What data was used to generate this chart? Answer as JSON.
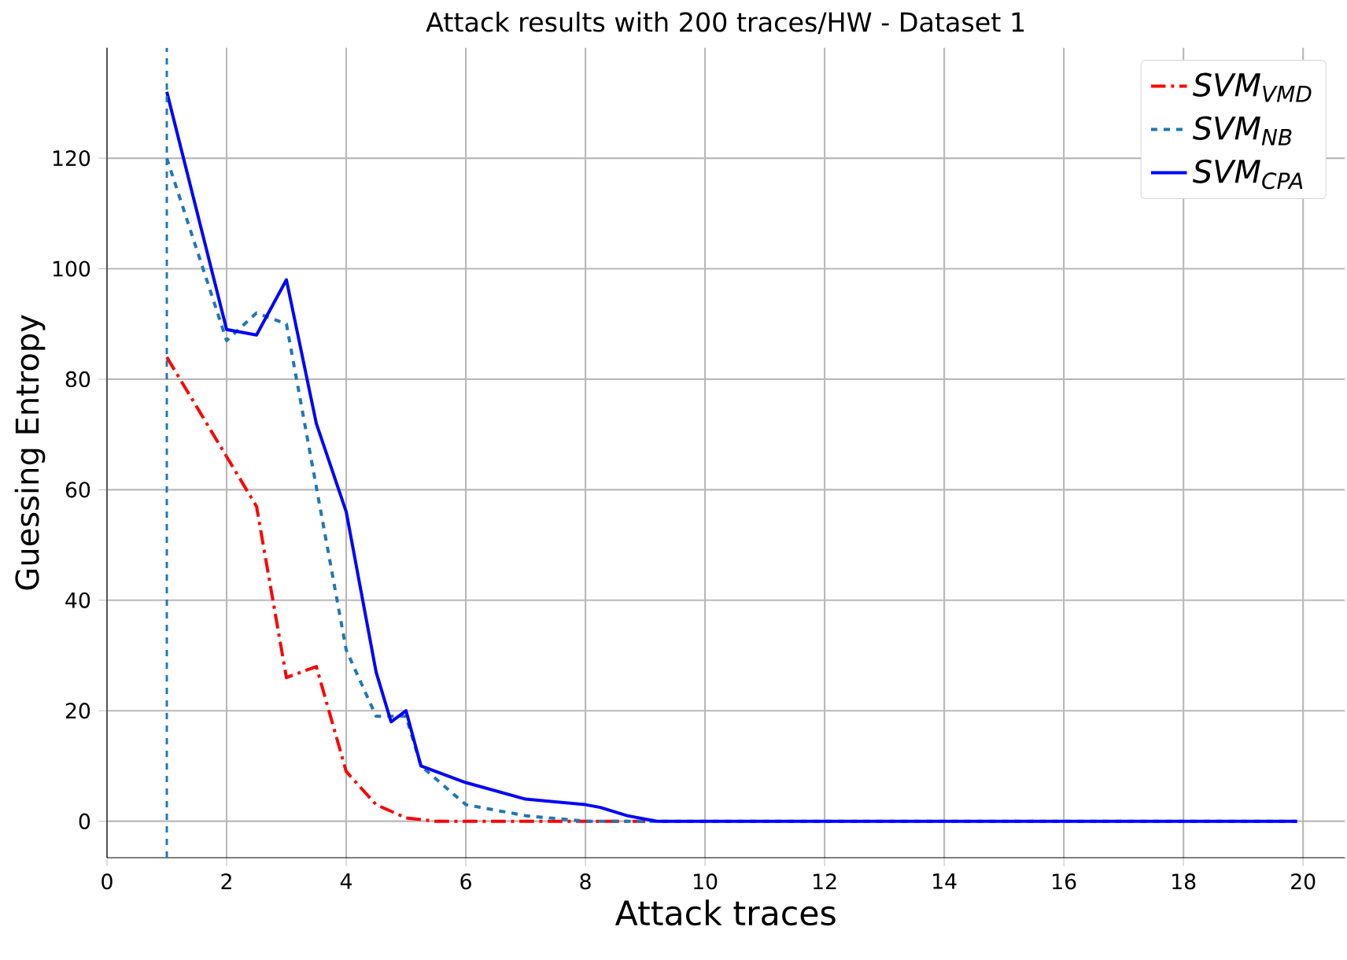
{
  "chart_data": {
    "type": "line",
    "title": "Attack results with 200 traces/HW - Dataset 1",
    "xlabel": "Attack traces",
    "ylabel": "Guessing Entropy",
    "xlim": [
      0,
      20.7
    ],
    "ylim": [
      -6.6,
      140
    ],
    "xticks": [
      0,
      2,
      4,
      6,
      8,
      10,
      12,
      14,
      16,
      18,
      20
    ],
    "yticks": [
      0,
      20,
      40,
      60,
      80,
      100,
      120
    ],
    "grid": true,
    "legend": "top right",
    "ref_lines": [
      {
        "axis": "x",
        "value": 1,
        "color": "#1f77b4",
        "line_style": "dashed"
      }
    ],
    "series": [
      {
        "name": "SVM$_{VMD}$",
        "color": "#ff0000",
        "line_style": "dashdot",
        "x": [
          1,
          2,
          2.5,
          3,
          3.5,
          4,
          4.5,
          5,
          5.5,
          9
        ],
        "values": [
          84,
          66,
          57,
          26,
          28,
          9,
          3,
          0.6,
          0,
          0
        ]
      },
      {
        "name": "SVM$_{NB}$",
        "color": "#1f77b4",
        "line_style": "dashed",
        "x": [
          1,
          2,
          2.5,
          3,
          4,
          4.5,
          5,
          5.25,
          6,
          7,
          8,
          9.2,
          19.9
        ],
        "values": [
          120,
          87,
          92,
          90,
          31,
          19,
          19,
          10,
          3,
          1,
          0,
          0,
          0
        ]
      },
      {
        "name": "SVM$_{CPA}$",
        "color": "#0000ff",
        "line_style": "solid",
        "x": [
          1,
          2,
          2.5,
          3,
          3.5,
          4,
          4.5,
          4.75,
          5,
          5.25,
          6,
          7,
          8,
          8.25,
          8.7,
          9.2,
          19.9
        ],
        "values": [
          132,
          89,
          88,
          98,
          72,
          56,
          27,
          18,
          20,
          10,
          7,
          4,
          3,
          2.5,
          1,
          0,
          0
        ]
      }
    ]
  }
}
